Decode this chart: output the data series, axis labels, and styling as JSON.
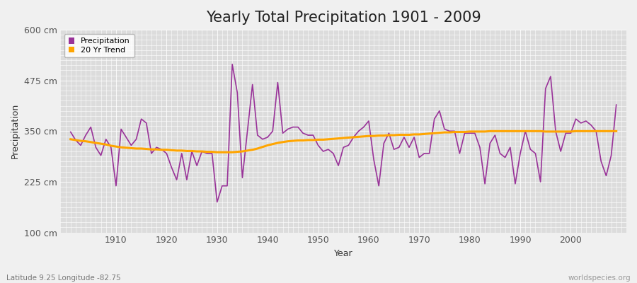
{
  "title": "Yearly Total Precipitation 1901 - 2009",
  "xlabel": "Year",
  "ylabel": "Precipitation",
  "subtitle": "Latitude 9.25 Longitude -82.75",
  "watermark": "worldspecies.org",
  "years": [
    1901,
    1902,
    1903,
    1904,
    1905,
    1906,
    1907,
    1908,
    1909,
    1910,
    1911,
    1912,
    1913,
    1914,
    1915,
    1916,
    1917,
    1918,
    1919,
    1920,
    1921,
    1922,
    1923,
    1924,
    1925,
    1926,
    1927,
    1928,
    1929,
    1930,
    1931,
    1932,
    1933,
    1934,
    1935,
    1936,
    1937,
    1938,
    1939,
    1940,
    1941,
    1942,
    1943,
    1944,
    1945,
    1946,
    1947,
    1948,
    1949,
    1950,
    1951,
    1952,
    1953,
    1954,
    1955,
    1956,
    1957,
    1958,
    1959,
    1960,
    1961,
    1962,
    1963,
    1964,
    1965,
    1966,
    1967,
    1968,
    1969,
    1970,
    1971,
    1972,
    1973,
    1974,
    1975,
    1976,
    1977,
    1978,
    1979,
    1980,
    1981,
    1982,
    1983,
    1984,
    1985,
    1986,
    1987,
    1988,
    1989,
    1990,
    1991,
    1992,
    1993,
    1994,
    1995,
    1996,
    1997,
    1998,
    1999,
    2000,
    2001,
    2002,
    2003,
    2004,
    2005,
    2006,
    2007,
    2008,
    2009
  ],
  "precip": [
    348,
    328,
    315,
    340,
    360,
    310,
    290,
    330,
    310,
    215,
    355,
    335,
    315,
    330,
    380,
    370,
    295,
    310,
    305,
    295,
    260,
    230,
    295,
    230,
    300,
    265,
    300,
    295,
    295,
    175,
    215,
    215,
    515,
    445,
    235,
    350,
    465,
    340,
    330,
    335,
    350,
    470,
    345,
    355,
    360,
    360,
    345,
    340,
    340,
    315,
    300,
    305,
    295,
    265,
    310,
    315,
    335,
    350,
    360,
    375,
    280,
    215,
    320,
    345,
    305,
    310,
    335,
    310,
    335,
    285,
    295,
    295,
    380,
    400,
    355,
    350,
    350,
    295,
    345,
    345,
    345,
    310,
    220,
    320,
    340,
    295,
    285,
    310,
    220,
    295,
    350,
    305,
    295,
    225,
    455,
    485,
    350,
    300,
    345,
    345,
    380,
    370,
    375,
    365,
    350,
    275,
    240,
    290,
    415
  ],
  "trend": [
    330,
    328,
    326,
    325,
    323,
    321,
    319,
    317,
    314,
    312,
    310,
    309,
    308,
    307,
    307,
    306,
    305,
    305,
    304,
    304,
    303,
    302,
    302,
    301,
    301,
    300,
    300,
    299,
    299,
    298,
    298,
    298,
    298,
    299,
    300,
    302,
    304,
    307,
    311,
    315,
    318,
    321,
    323,
    325,
    326,
    327,
    327,
    328,
    328,
    329,
    329,
    330,
    331,
    332,
    333,
    334,
    335,
    336,
    337,
    338,
    338,
    339,
    339,
    340,
    340,
    341,
    341,
    341,
    342,
    342,
    343,
    344,
    345,
    346,
    347,
    347,
    348,
    348,
    348,
    349,
    349,
    349,
    349,
    350,
    350,
    350,
    350,
    350,
    350,
    350,
    350,
    350,
    350,
    350,
    349,
    349,
    349,
    349,
    349,
    349,
    350,
    350,
    350,
    350,
    350,
    350,
    350,
    350,
    350
  ],
  "ylim": [
    100,
    600
  ],
  "yticks": [
    100,
    225,
    350,
    475,
    600
  ],
  "ytick_labels": [
    "100 cm",
    "225 cm",
    "350 cm",
    "475 cm",
    "600 cm"
  ],
  "precip_color": "#993399",
  "trend_color": "#FFA500",
  "bg_color": "#F0F0F0",
  "plot_bg_color": "#DCDCDC",
  "grid_color": "#FFFFFF",
  "title_fontsize": 15,
  "axis_fontsize": 9,
  "legend_fontsize": 8,
  "subtitle_color": "#777777",
  "watermark_color": "#999999",
  "title_color": "#222222",
  "axis_label_color": "#333333",
  "tick_label_color": "#555555"
}
